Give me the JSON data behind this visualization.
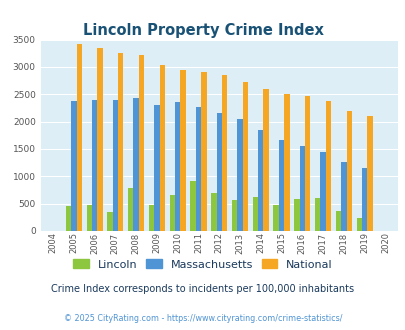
{
  "title": "Lincoln Property Crime Index",
  "title_color": "#1a5276",
  "years": [
    2004,
    2005,
    2006,
    2007,
    2008,
    2009,
    2010,
    2011,
    2012,
    2013,
    2014,
    2015,
    2016,
    2017,
    2018,
    2019,
    2020
  ],
  "lincoln": [
    0,
    450,
    470,
    350,
    790,
    470,
    660,
    920,
    700,
    570,
    620,
    470,
    590,
    600,
    370,
    240,
    0
  ],
  "massachusetts": [
    0,
    2370,
    2400,
    2400,
    2440,
    2300,
    2350,
    2260,
    2160,
    2050,
    1850,
    1670,
    1550,
    1450,
    1260,
    1160,
    0
  ],
  "national": [
    0,
    3420,
    3340,
    3260,
    3210,
    3040,
    2950,
    2910,
    2860,
    2720,
    2590,
    2500,
    2470,
    2380,
    2200,
    2100,
    0
  ],
  "lincoln_color": "#8dc63f",
  "massachusetts_color": "#4f94d4",
  "national_color": "#f5a623",
  "bg_color": "#ddeef6",
  "ylim": [
    0,
    3500
  ],
  "ylabel_step": 500,
  "subtitle": "Crime Index corresponds to incidents per 100,000 inhabitants",
  "subtitle_color": "#1a3a5c",
  "footer": "© 2025 CityRating.com - https://www.cityrating.com/crime-statistics/",
  "footer_color": "#4f94d4",
  "bar_width": 0.26,
  "grid_color": "#ffffff"
}
